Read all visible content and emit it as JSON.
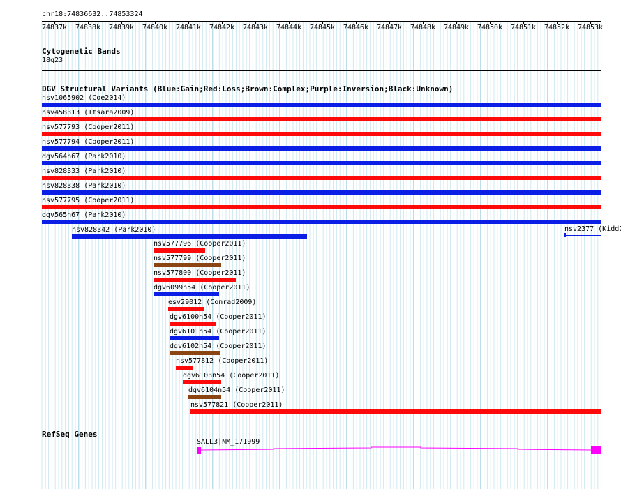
{
  "ruler": {
    "location": "chr18:74836632..74853324",
    "ticks": [
      "74837k",
      "74838k",
      "74839k",
      "74840k",
      "74841k",
      "74842k",
      "74843k",
      "74844k",
      "74845k",
      "74846k",
      "74847k",
      "74848k",
      "74849k",
      "74850k",
      "74851k",
      "74852k",
      "74853k"
    ]
  },
  "cytoband": {
    "title": "Cytogenetic Bands",
    "band": "18q23"
  },
  "dgv": {
    "title": "DGV Structural Variants (Blue:Gain;Red:Loss;Brown:Complex;Purple:Inversion;Black:Unknown)",
    "colors": {
      "gain": "#0a1ee6",
      "loss": "#ff0a0a",
      "complex": "#8b4513",
      "unknown": "#000000"
    },
    "full_rows": [
      {
        "label": "nsv1065902 (Coe2014)",
        "type": "gain"
      },
      {
        "label": "nsv458313 (Itsara2009)",
        "type": "loss"
      },
      {
        "label": "nsv577793 (Cooper2011)",
        "type": "loss"
      },
      {
        "label": "nsv577794 (Cooper2011)",
        "type": "gain"
      },
      {
        "label": "dgv564n67 (Park2010)",
        "type": "gain"
      },
      {
        "label": "nsv828333 (Park2010)",
        "type": "loss"
      },
      {
        "label": "nsv828338 (Park2010)",
        "type": "gain"
      },
      {
        "label": "nsv577795 (Cooper2011)",
        "type": "loss"
      },
      {
        "label": "dgv565n67 (Park2010)",
        "type": "gain"
      }
    ],
    "partial_rows": [
      {
        "label": "nsv828342 (Park2010)",
        "type": "gain"
      },
      {
        "label": "nsv2377 (Kidd2",
        "type": "gain"
      },
      {
        "label": "nsv577796 (Cooper2011)",
        "type": "loss"
      },
      {
        "label": "nsv577799 (Cooper2011)",
        "type": "complex"
      },
      {
        "label": "nsv577800 (Cooper2011)",
        "type": "loss"
      },
      {
        "label": "dgv6099n54 (Cooper2011)",
        "type": "gain"
      },
      {
        "label": "esv29012 (Conrad2009)",
        "type": "loss"
      },
      {
        "label": "dgv6100n54 (Cooper2011)",
        "type": "loss"
      },
      {
        "label": "dgv6101n54 (Cooper2011)",
        "type": "gain"
      },
      {
        "label": "dgv6102n54 (Cooper2011)",
        "type": "complex"
      },
      {
        "label": "nsv577812 (Cooper2011)",
        "type": "loss"
      },
      {
        "label": "dgv6103n54 (Cooper2011)",
        "type": "loss"
      },
      {
        "label": "dgv6104n54 (Cooper2011)",
        "type": "complex"
      },
      {
        "label": "nsv577821 (Cooper2011)",
        "type": "loss"
      }
    ]
  },
  "refseq": {
    "title": "RefSeq Genes",
    "gene_label": "SALL3|NM_171999",
    "color": "#ff00ff"
  }
}
